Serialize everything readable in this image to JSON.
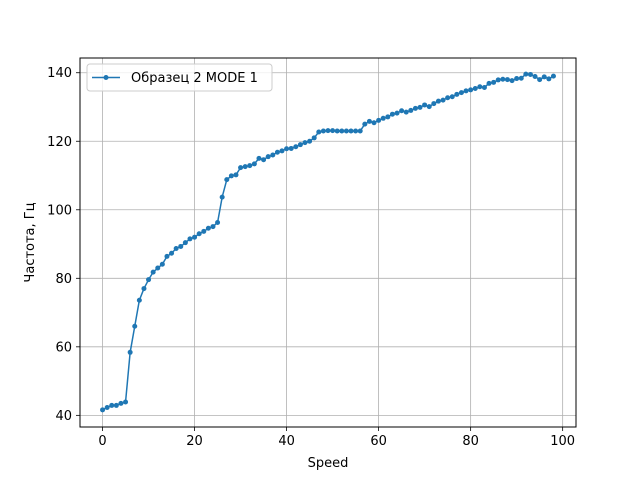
{
  "chart_data": {
    "type": "line",
    "xlabel": "Speed",
    "ylabel": "Частота, Гц",
    "xlim": [
      -4.9,
      102.9
    ],
    "ylim": [
      36.6,
      144.3
    ],
    "xticks": [
      0,
      20,
      40,
      60,
      80,
      100
    ],
    "yticks": [
      40,
      60,
      80,
      100,
      120,
      140
    ],
    "grid": true,
    "legend_position": "top-left",
    "series": [
      {
        "name": "Образец 2 MODE 1",
        "color": "#1f77b4",
        "marker": "circle",
        "x": [
          0,
          1,
          2,
          3,
          4,
          5,
          6,
          7,
          8,
          9,
          10,
          11,
          12,
          13,
          14,
          15,
          16,
          17,
          18,
          19,
          20,
          21,
          22,
          23,
          24,
          25,
          26,
          27,
          28,
          29,
          30,
          31,
          32,
          33,
          34,
          35,
          36,
          37,
          38,
          39,
          40,
          41,
          42,
          43,
          44,
          45,
          46,
          47,
          48,
          49,
          50,
          51,
          52,
          53,
          54,
          55,
          56,
          57,
          58,
          59,
          60,
          61,
          62,
          63,
          64,
          65,
          66,
          67,
          68,
          69,
          70,
          71,
          72,
          73,
          74,
          75,
          76,
          77,
          78,
          79,
          80,
          81,
          82,
          83,
          84,
          85,
          86,
          87,
          88,
          89,
          90,
          91,
          92,
          93,
          94,
          95,
          96,
          97,
          98
        ],
        "y": [
          41.6,
          42.3,
          42.9,
          42.9,
          43.5,
          43.9,
          58.4,
          66.0,
          73.6,
          77.0,
          79.6,
          81.8,
          83.0,
          84.1,
          86.4,
          87.3,
          88.7,
          89.3,
          90.4,
          91.5,
          92.0,
          93.0,
          93.7,
          94.6,
          95.1,
          96.3,
          103.7,
          108.8,
          109.9,
          110.2,
          112.3,
          112.6,
          112.9,
          113.4,
          115.0,
          114.6,
          115.5,
          116.0,
          116.8,
          117.2,
          117.8,
          117.9,
          118.4,
          119.0,
          119.6,
          120.0,
          121.0,
          122.7,
          123.0,
          123.1,
          123.1,
          123.0,
          123.0,
          123.0,
          123.0,
          123.0,
          123.0,
          125.0,
          125.8,
          125.4,
          126.1,
          126.7,
          127.1,
          127.9,
          128.2,
          128.9,
          128.5,
          129.0,
          129.6,
          129.9,
          130.6,
          130.1,
          131.0,
          131.7,
          132.0,
          132.7,
          133.0,
          133.7,
          134.2,
          134.7,
          135.0,
          135.4,
          135.9,
          135.7,
          136.9,
          137.2,
          137.9,
          138.1,
          138.0,
          137.7,
          138.3,
          138.4,
          139.6,
          139.5,
          138.9,
          138.0,
          138.8,
          138.2,
          139.0
        ]
      }
    ]
  }
}
